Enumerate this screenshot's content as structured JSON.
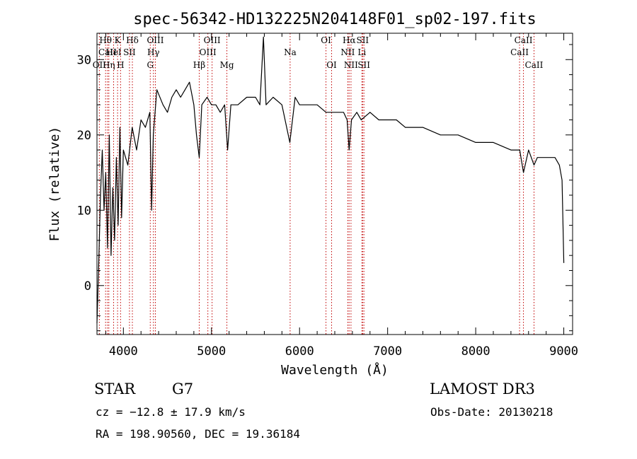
{
  "footer": {
    "object_class": "STAR",
    "subclass": "G7",
    "survey": "LAMOST DR3",
    "redshift": "cz = −12.8 ± 17.9 km/s",
    "obs_date": "Obs-Date: 20130218",
    "coords": "RA = 198.90560, DEC =  19.36184"
  },
  "chart_data": {
    "type": "line",
    "title": "spec-56342-HD132225N204148F01_sp02-197.fits",
    "xlabel": "Wavelength (Å)",
    "ylabel": "Flux (relative)",
    "xlim": [
      3700,
      9100
    ],
    "ylim": [
      -6.5,
      33.5
    ],
    "xticks": [
      4000,
      5000,
      6000,
      7000,
      8000,
      9000
    ],
    "xminor_step": 200,
    "yticks": [
      0,
      10,
      20,
      30
    ],
    "yminor_step": 2,
    "spectrum": {
      "name": "flux",
      "x": [
        3700,
        3720,
        3740,
        3760,
        3780,
        3800,
        3820,
        3840,
        3860,
        3880,
        3900,
        3920,
        3940,
        3960,
        3980,
        4000,
        4050,
        4100,
        4150,
        4200,
        4250,
        4300,
        4320,
        4340,
        4380,
        4450,
        4500,
        4550,
        4600,
        4650,
        4700,
        4750,
        4800,
        4830,
        4861,
        4890,
        4950,
        5000,
        5050,
        5100,
        5150,
        5183,
        5220,
        5300,
        5400,
        5500,
        5550,
        5590,
        5620,
        5700,
        5800,
        5890,
        5950,
        6000,
        6100,
        6200,
        6300,
        6400,
        6500,
        6540,
        6563,
        6590,
        6650,
        6700,
        6800,
        6900,
        7000,
        7100,
        7200,
        7400,
        7600,
        7800,
        8000,
        8200,
        8400,
        8500,
        8542,
        8600,
        8662,
        8700,
        8800,
        8900,
        8950,
        8980,
        9000
      ],
      "y": [
        -5,
        3,
        12,
        18,
        10,
        15,
        5,
        20,
        4,
        13,
        6,
        17,
        8,
        21,
        9,
        18,
        16,
        21,
        18,
        22,
        21,
        23,
        10,
        20,
        26,
        24,
        23,
        25,
        26,
        25,
        26,
        27,
        24,
        20,
        17,
        24,
        25,
        24,
        24,
        23,
        24,
        18,
        24,
        24,
        25,
        25,
        24,
        33,
        24,
        25,
        24,
        19,
        25,
        24,
        24,
        24,
        23,
        23,
        23,
        22,
        18,
        22,
        23,
        22,
        23,
        22,
        22,
        22,
        21,
        21,
        20,
        20,
        19,
        19,
        18,
        18,
        15,
        18,
        16,
        17,
        17,
        17,
        16,
        14,
        3
      ]
    },
    "lines": [
      {
        "label": "Hθ",
        "x": 3798,
        "row": 0
      },
      {
        "label": "CaII",
        "x": 3820,
        "row": 1
      },
      {
        "label": "OII",
        "x": 3727,
        "row": 2
      },
      {
        "label": "Hη",
        "x": 3835,
        "row": 2
      },
      {
        "label": "HeI",
        "x": 3889,
        "row": 1
      },
      {
        "label": "K",
        "x": 3934,
        "row": 0
      },
      {
        "label": "H",
        "x": 3968,
        "row": 2
      },
      {
        "label": "SII",
        "x": 4069,
        "row": 1
      },
      {
        "label": "Hδ",
        "x": 4102,
        "row": 0
      },
      {
        "label": "OIII",
        "x": 4363,
        "row": 0
      },
      {
        "label": "Hγ",
        "x": 4341,
        "row": 1
      },
      {
        "label": "G",
        "x": 4305,
        "row": 2
      },
      {
        "label": "Hβ",
        "x": 4861,
        "row": 2
      },
      {
        "label": "OIII",
        "x": 4959,
        "row": 1
      },
      {
        "label": "OIII",
        "x": 5007,
        "row": 0
      },
      {
        "label": "Mg",
        "x": 5175,
        "row": 2
      },
      {
        "label": "Na",
        "x": 5893,
        "row": 1
      },
      {
        "label": "OI",
        "x": 6300,
        "row": 0
      },
      {
        "label": "OI",
        "x": 6364,
        "row": 2
      },
      {
        "label": "Hα",
        "x": 6563,
        "row": 0
      },
      {
        "label": "NII",
        "x": 6548,
        "row": 1
      },
      {
        "label": "NII",
        "x": 6584,
        "row": 2
      },
      {
        "label": "SII",
        "x": 6716,
        "row": 0
      },
      {
        "label": "Li",
        "x": 6708,
        "row": 1
      },
      {
        "label": "SII",
        "x": 6731,
        "row": 2
      },
      {
        "label": "CaII",
        "x": 8542,
        "row": 0
      },
      {
        "label": "CaII",
        "x": 8498,
        "row": 1
      },
      {
        "label": "CaII",
        "x": 8662,
        "row": 2
      }
    ]
  }
}
